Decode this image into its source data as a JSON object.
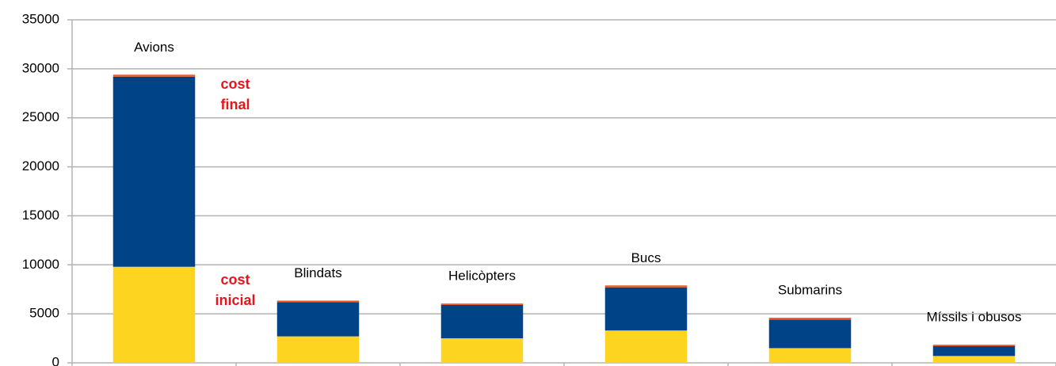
{
  "chart_data": {
    "type": "bar",
    "stacked": true,
    "categories": [
      "Avions",
      "Blindats",
      "Helicòpters",
      "Bucs",
      "Submarins",
      "Míssils i obusos"
    ],
    "series": [
      {
        "color": "#fdd520",
        "values": [
          9800,
          2700,
          2500,
          3300,
          1500,
          700
        ]
      },
      {
        "color": "#004487",
        "values": [
          19400,
          3500,
          3400,
          4400,
          2900,
          1000
        ]
      },
      {
        "color": "#f05a28",
        "values": [
          200,
          150,
          150,
          200,
          200,
          150
        ]
      }
    ],
    "annotations": [
      "cost inicial",
      "cost final"
    ],
    "ylim": [
      0,
      35000
    ],
    "yticks": [
      0,
      5000,
      10000,
      15000,
      20000,
      25000,
      30000,
      35000
    ],
    "grid": true
  }
}
